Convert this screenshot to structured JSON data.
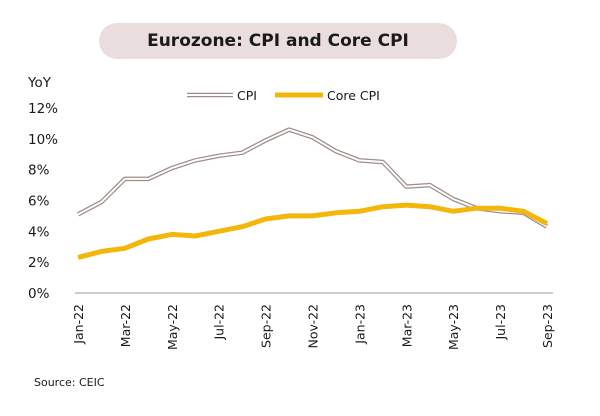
{
  "chart_data": {
    "type": "line",
    "title": "Eurozone: CPI and Core CPI",
    "ylabel": "YoY",
    "xlabel": "",
    "source": "Source: CEIC",
    "ylim": [
      0,
      12
    ],
    "yticks": [
      "0%",
      "2%",
      "4%",
      "6%",
      "8%",
      "10%",
      "12%"
    ],
    "ytick_values": [
      0,
      2,
      4,
      6,
      8,
      10,
      12
    ],
    "categories": [
      "Jan-22",
      "Feb-22",
      "Mar-22",
      "Apr-22",
      "May-22",
      "Jun-22",
      "Jul-22",
      "Aug-22",
      "Sep-22",
      "Oct-22",
      "Nov-22",
      "Dec-22",
      "Jan-23",
      "Feb-23",
      "Mar-23",
      "Apr-23",
      "May-23",
      "Jun-23",
      "Jul-23",
      "Aug-23",
      "Sep-23"
    ],
    "xtick_labels": [
      "Jan-22",
      "Mar-22",
      "May-22",
      "Jul-22",
      "Sep-22",
      "Nov-22",
      "Jan-23",
      "Mar-23",
      "May-23",
      "Jul-23",
      "Sep-23"
    ],
    "legend_position": "top",
    "grid": false,
    "series": [
      {
        "name": "CPI",
        "color": "#a08c8a",
        "style": "hollow",
        "values": [
          5.1,
          5.9,
          7.4,
          7.4,
          8.1,
          8.6,
          8.9,
          9.1,
          9.9,
          10.6,
          10.1,
          9.2,
          8.6,
          8.5,
          6.9,
          7.0,
          6.1,
          5.5,
          5.3,
          5.2,
          4.3
        ]
      },
      {
        "name": "Core CPI",
        "color": "#f2b70a",
        "style": "solid",
        "values": [
          2.3,
          2.7,
          2.9,
          3.5,
          3.8,
          3.7,
          4.0,
          4.3,
          4.8,
          5.0,
          5.0,
          5.2,
          5.3,
          5.6,
          5.7,
          5.6,
          5.3,
          5.5,
          5.5,
          5.3,
          4.5
        ]
      }
    ]
  }
}
